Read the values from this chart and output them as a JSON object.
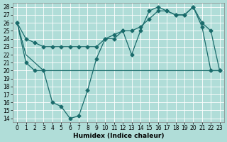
{
  "xlabel": "Humidex (Indice chaleur)",
  "xlim": [
    -0.5,
    23.5
  ],
  "ylim": [
    13.5,
    28.5
  ],
  "xticks": [
    0,
    1,
    2,
    3,
    4,
    5,
    6,
    7,
    8,
    9,
    10,
    11,
    12,
    13,
    14,
    15,
    16,
    17,
    18,
    19,
    20,
    21,
    22,
    23
  ],
  "yticks": [
    14,
    15,
    16,
    17,
    18,
    19,
    20,
    21,
    22,
    23,
    24,
    25,
    26,
    27,
    28
  ],
  "bg_color": "#b0ddd8",
  "line_color": "#1a6b6b",
  "line1_x": [
    0,
    1,
    2,
    3,
    4,
    5,
    6,
    7,
    8,
    9,
    10,
    11,
    12,
    13,
    14,
    15,
    16,
    17,
    18,
    19,
    20,
    21,
    22,
    23
  ],
  "line1_y": [
    26,
    24,
    23.5,
    23,
    23,
    23,
    23,
    23,
    23,
    23,
    24,
    24.5,
    25,
    25,
    25.5,
    26.5,
    27.5,
    27.5,
    27,
    27,
    28,
    25.5,
    20,
    20
  ],
  "line2_x": [
    0,
    1,
    2,
    3,
    4,
    5,
    6,
    7,
    8,
    9,
    10,
    11,
    12,
    13,
    14,
    15,
    16,
    17,
    18,
    19,
    20,
    21,
    22,
    23
  ],
  "line2_y": [
    26,
    21,
    20,
    20,
    16,
    15.5,
    14,
    14.3,
    17.5,
    21.5,
    24,
    24,
    25,
    22,
    25,
    27.5,
    28,
    27.5,
    27,
    27,
    28,
    26,
    25,
    20
  ],
  "line3_x": [
    0,
    1,
    2,
    3,
    4,
    5,
    6,
    7,
    8,
    9,
    10,
    11,
    12,
    13,
    14,
    15,
    16,
    17,
    18,
    19,
    20,
    21,
    22,
    23
  ],
  "line3_y": [
    26,
    22,
    21,
    20,
    20,
    20,
    20,
    20,
    20,
    20,
    20,
    20,
    20,
    20,
    20,
    20,
    20,
    20,
    20,
    20,
    20,
    20,
    20,
    20
  ],
  "grid_color": "#ffffff",
  "tick_fontsize": 5.5,
  "xlabel_fontsize": 6.5
}
